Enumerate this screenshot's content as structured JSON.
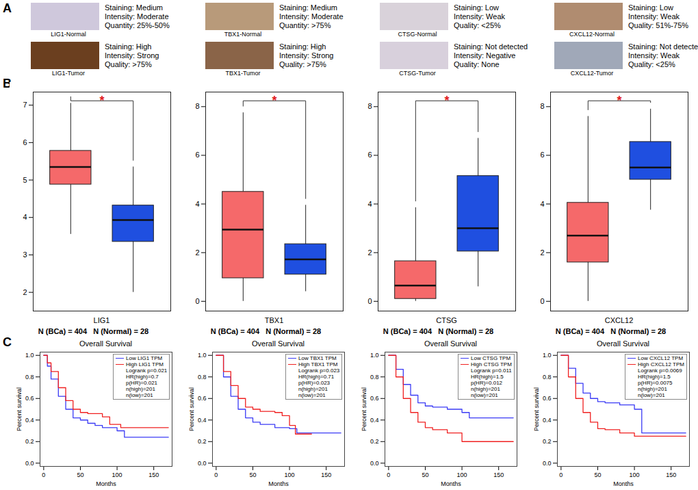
{
  "panel_labels": [
    "A",
    "B",
    "C"
  ],
  "images": [
    {
      "label": "LIG1-Normal",
      "color": "#cfc8dc",
      "lines": [
        "Staining: Medium",
        "Intensity: Moderate",
        "Quantity: 25%-50%"
      ]
    },
    {
      "label": "TBX1-Normal",
      "color": "#b89a7a",
      "lines": [
        "Staining: Medium",
        "Intensity: Moderate",
        "Quantity: >75%"
      ]
    },
    {
      "label": "CTSG-Normal",
      "color": "#d9d2da",
      "lines": [
        "Staining: Low",
        "Intensity: Weak",
        "Quality: <25%"
      ]
    },
    {
      "label": "CXCL12-Normal",
      "color": "#b08c70",
      "lines": [
        "Staining: Low",
        "Intensity: Weak",
        "Quality: 51%-75%"
      ]
    },
    {
      "label": "LIG1-Tumor",
      "color": "#6b3f1f",
      "lines": [
        "Staining: High",
        "Intensity: Strong",
        "Quality: >75%"
      ]
    },
    {
      "label": "TBX1-Tumor",
      "color": "#8a6448",
      "lines": [
        "Staining: High",
        "Intensity: Strong",
        "Quality: >75%"
      ]
    },
    {
      "label": "CTSG-Tumor",
      "color": "#d8d0dc",
      "lines": [
        "Staining: Not detected",
        "Intensity: Negative",
        "Quality: None"
      ]
    },
    {
      "label": "CXCL12-Tumor",
      "color": "#a0a8b8",
      "lines": [
        "Staining: Not detected",
        "Intensity: Weak",
        "Quality: <25%"
      ]
    }
  ],
  "chart_data": [
    {
      "type": "box",
      "xlabel": "LIG1",
      "categories": [
        null,
        null
      ],
      "ylim": [
        1.5,
        7.35
      ],
      "yticks": [
        2,
        3,
        4,
        5,
        6,
        7
      ],
      "boxes": [
        {
          "color": "#f5696a",
          "min": 3.55,
          "q1": 4.88,
          "median": 5.35,
          "q3": 5.78,
          "max": 7.05
        },
        {
          "color": "#1f4fe0",
          "min": 2.0,
          "q1": 3.35,
          "median": 3.93,
          "q3": 4.32,
          "max": 5.35
        }
      ],
      "annotations": [
        "N (BCa) = 404",
        "N (Normal) = 28"
      ],
      "significance": "*"
    },
    {
      "type": "box",
      "xlabel": "TBX1",
      "categories": [
        null,
        null
      ],
      "ylim": [
        -0.4,
        8.6
      ],
      "yticks": [
        0,
        2,
        4,
        6,
        8
      ],
      "boxes": [
        {
          "color": "#f5696a",
          "min": 0,
          "q1": 0.95,
          "median": 2.95,
          "q3": 4.5,
          "max": 7.75
        },
        {
          "color": "#1f4fe0",
          "min": 0.4,
          "q1": 1.1,
          "median": 1.72,
          "q3": 2.35,
          "max": 3.95
        }
      ],
      "annotations": [
        "N (BCa) = 404",
        "N (Normal) = 28"
      ],
      "significance": "*"
    },
    {
      "type": "box",
      "xlabel": "CTSG",
      "categories": [
        null,
        null
      ],
      "ylim": [
        -0.4,
        8.6
      ],
      "yticks": [
        0,
        2,
        4,
        6,
        8
      ],
      "boxes": [
        {
          "color": "#f5696a",
          "min": 0,
          "q1": 0.1,
          "median": 0.65,
          "q3": 1.65,
          "max": 3.85
        },
        {
          "color": "#1f4fe0",
          "min": 0.6,
          "q1": 2.05,
          "median": 3.0,
          "q3": 5.15,
          "max": 6.7
        }
      ],
      "annotations": [
        "N (BCa) = 404",
        "N (Normal) = 28"
      ],
      "significance": "*"
    },
    {
      "type": "box",
      "xlabel": "CXCL12",
      "categories": [
        null,
        null
      ],
      "ylim": [
        -0.4,
        8.6
      ],
      "yticks": [
        0,
        2,
        4,
        6,
        8
      ],
      "boxes": [
        {
          "color": "#f5696a",
          "min": 0,
          "q1": 1.6,
          "median": 2.7,
          "q3": 4.05,
          "max": 7.6
        },
        {
          "color": "#1f4fe0",
          "min": 3.75,
          "q1": 5.0,
          "median": 5.5,
          "q3": 6.55,
          "max": 7.9
        }
      ],
      "annotations": [
        "N (BCa) = 404",
        "N (Normal) = 28"
      ],
      "significance": "*"
    },
    {
      "type": "line",
      "title": "Overall Survival",
      "xlabel": "Months",
      "ylabel": "Percent survival",
      "xlim": [
        -5,
        175
      ],
      "xticks": [
        0,
        50,
        100,
        150
      ],
      "ylim": [
        -0.03,
        1.03
      ],
      "yticks": [
        {
          "value": 0,
          "label": "0.0"
        },
        {
          "value": 0.2,
          "label": "0.2"
        },
        {
          "value": 0.4,
          "label": "0.4"
        },
        {
          "value": 0.6,
          "label": "0.6"
        },
        {
          "value": 0.8,
          "label": "0.8"
        },
        {
          "value": 1,
          "label": "1.0"
        }
      ],
      "line_style": "step",
      "legend": "top-right",
      "legend_text": [
        "Logrank p=0.021",
        "HR(high)=0.7",
        "p(HR)=0.021",
        "n(high)=201",
        "n(low)=201"
      ],
      "series": [
        {
          "name": "Low LIG1 TPM",
          "color": "#3b3bf5",
          "x": [
            0,
            5,
            10,
            20,
            30,
            40,
            50,
            60,
            70,
            80,
            100,
            110,
            170
          ],
          "values": [
            1,
            0.9,
            0.78,
            0.62,
            0.5,
            0.42,
            0.4,
            0.37,
            0.35,
            0.33,
            0.3,
            0.24,
            0.24
          ]
        },
        {
          "name": "High LIG1 TPM",
          "color": "#f02020",
          "x": [
            0,
            5,
            10,
            20,
            30,
            40,
            50,
            60,
            70,
            80,
            90,
            100,
            105,
            170
          ],
          "values": [
            1,
            0.93,
            0.85,
            0.7,
            0.58,
            0.5,
            0.47,
            0.46,
            0.46,
            0.43,
            0.36,
            0.36,
            0.33,
            0.33
          ]
        }
      ]
    },
    {
      "type": "line",
      "title": "Overall Survival",
      "xlabel": "Months",
      "ylabel": "Percent survival",
      "xlim": [
        -5,
        175
      ],
      "xticks": [
        0,
        50,
        100,
        150
      ],
      "ylim": [
        -0.03,
        1.03
      ],
      "yticks": [
        {
          "value": 0,
          "label": "0.0"
        },
        {
          "value": 0.2,
          "label": "0.2"
        },
        {
          "value": 0.4,
          "label": "0.4"
        },
        {
          "value": 0.6,
          "label": "0.6"
        },
        {
          "value": 0.8,
          "label": "0.8"
        },
        {
          "value": 1,
          "label": "1.0"
        }
      ],
      "line_style": "step",
      "legend": "top-right",
      "legend_text": [
        "Logrank p=0.023",
        "HR(high)=0.71",
        "p(HR)=0.023",
        "n(high)=201",
        "n(low)=201"
      ],
      "series": [
        {
          "name": "Low TBX1 TPM",
          "color": "#3b3bf5",
          "x": [
            0,
            10,
            20,
            30,
            40,
            50,
            60,
            80,
            100,
            110,
            170
          ],
          "values": [
            1,
            0.8,
            0.62,
            0.5,
            0.42,
            0.38,
            0.36,
            0.33,
            0.32,
            0.28,
            0.28
          ]
        },
        {
          "name": "High TBX1 TPM",
          "color": "#f02020",
          "x": [
            0,
            10,
            20,
            30,
            40,
            50,
            60,
            80,
            90,
            100,
            108,
            130
          ],
          "values": [
            1,
            0.85,
            0.72,
            0.6,
            0.52,
            0.5,
            0.48,
            0.47,
            0.44,
            0.35,
            0.27,
            0.27
          ]
        }
      ]
    },
    {
      "type": "line",
      "title": "Overall Survival",
      "xlabel": "Months",
      "ylabel": "Percent survival",
      "xlim": [
        -5,
        175
      ],
      "xticks": [
        0,
        50,
        100,
        150
      ],
      "ylim": [
        -0.03,
        1.03
      ],
      "yticks": [
        {
          "value": 0,
          "label": "0.0"
        },
        {
          "value": 0.2,
          "label": "0.2"
        },
        {
          "value": 0.4,
          "label": "0.4"
        },
        {
          "value": 0.6,
          "label": "0.6"
        },
        {
          "value": 0.8,
          "label": "0.8"
        },
        {
          "value": 1,
          "label": "1.0"
        }
      ],
      "line_style": "step",
      "legend": "top-right",
      "legend_text": [
        "Logrank p=0.011",
        "HR(high)=1.5",
        "p(HR)=0.012",
        "n(high)=201",
        "n(low)=201"
      ],
      "series": [
        {
          "name": "Low CTSG TPM",
          "color": "#3b3bf5",
          "x": [
            0,
            10,
            20,
            30,
            40,
            50,
            60,
            80,
            100,
            110,
            170
          ],
          "values": [
            1,
            0.87,
            0.73,
            0.63,
            0.56,
            0.53,
            0.52,
            0.5,
            0.47,
            0.42,
            0.42
          ]
        },
        {
          "name": "High CTSG TPM",
          "color": "#f02020",
          "x": [
            0,
            10,
            20,
            30,
            40,
            50,
            60,
            80,
            100,
            170
          ],
          "values": [
            1,
            0.8,
            0.6,
            0.47,
            0.38,
            0.33,
            0.31,
            0.28,
            0.2,
            0.2
          ]
        }
      ]
    },
    {
      "type": "line",
      "title": "Overall Survival",
      "xlabel": "Months",
      "ylabel": "Percent survival",
      "xlim": [
        -5,
        175
      ],
      "xticks": [
        0,
        50,
        100,
        150
      ],
      "ylim": [
        -0.03,
        1.03
      ],
      "yticks": [
        {
          "value": 0,
          "label": "0.0"
        },
        {
          "value": 0.2,
          "label": "0.2"
        },
        {
          "value": 0.4,
          "label": "0.4"
        },
        {
          "value": 0.6,
          "label": "0.6"
        },
        {
          "value": 0.8,
          "label": "0.8"
        },
        {
          "value": 1,
          "label": "1.0"
        }
      ],
      "line_style": "step",
      "legend": "top-right",
      "legend_text": [
        "Logrank p=0.0069",
        "HR(high)=1.5",
        "p(HR)=0.0075",
        "n(high)=201",
        "n(low)=201"
      ],
      "series": [
        {
          "name": "Low CXCL12 TPM",
          "color": "#3b3bf5",
          "x": [
            0,
            10,
            20,
            30,
            40,
            50,
            60,
            80,
            100,
            110,
            170
          ],
          "values": [
            1,
            0.88,
            0.74,
            0.65,
            0.6,
            0.57,
            0.56,
            0.54,
            0.5,
            0.28,
            0.28
          ]
        },
        {
          "name": "High CXCL12 TPM",
          "color": "#f02020",
          "x": [
            0,
            10,
            20,
            30,
            40,
            50,
            60,
            80,
            100,
            170
          ],
          "values": [
            1,
            0.8,
            0.6,
            0.47,
            0.38,
            0.32,
            0.31,
            0.28,
            0.25,
            0.25
          ]
        }
      ]
    }
  ]
}
